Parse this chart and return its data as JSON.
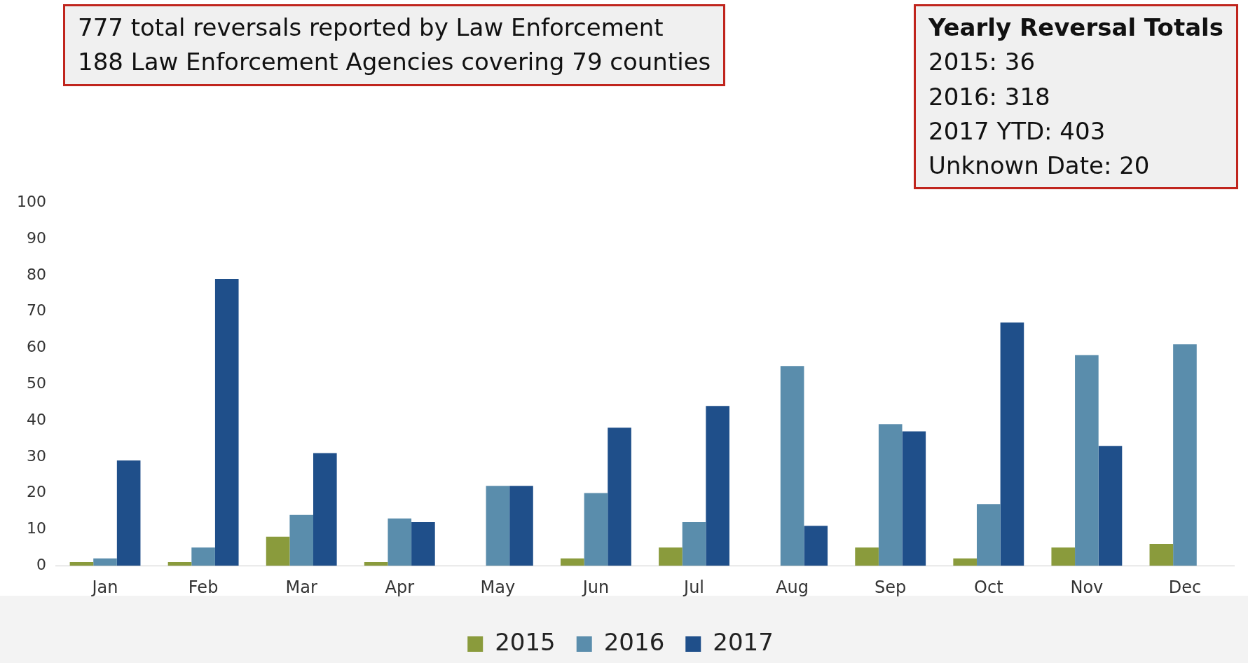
{
  "chart_data": {
    "type": "bar",
    "categories": [
      "Jan",
      "Feb",
      "Mar",
      "Apr",
      "May",
      "Jun",
      "Jul",
      "Aug",
      "Sep",
      "Oct",
      "Nov",
      "Dec"
    ],
    "series": [
      {
        "name": "2015",
        "color": "#8a9b3c",
        "values": [
          1,
          1,
          8,
          1,
          0,
          2,
          5,
          0,
          5,
          2,
          5,
          6
        ]
      },
      {
        "name": "2016",
        "color": "#5a8dac",
        "values": [
          2,
          5,
          14,
          13,
          22,
          20,
          12,
          55,
          39,
          17,
          58,
          61
        ]
      },
      {
        "name": "2017",
        "color": "#1f4f8a",
        "values": [
          29,
          79,
          31,
          12,
          22,
          38,
          44,
          11,
          37,
          67,
          33,
          null
        ]
      }
    ],
    "ylim": [
      0,
      100
    ],
    "yticks": [
      0,
      10,
      20,
      30,
      40,
      50,
      60,
      70,
      80,
      90,
      100
    ],
    "grid": false,
    "legend": "bottom",
    "annotations": [
      "777 total reversals reported by Law Enforcement",
      "188 Law Enforcement Agencies covering 79 counties",
      "Yearly Reversal Totals",
      "2015: 36",
      "2016: 318",
      "2017 YTD: 403",
      "Unknown Date: 20"
    ]
  }
}
